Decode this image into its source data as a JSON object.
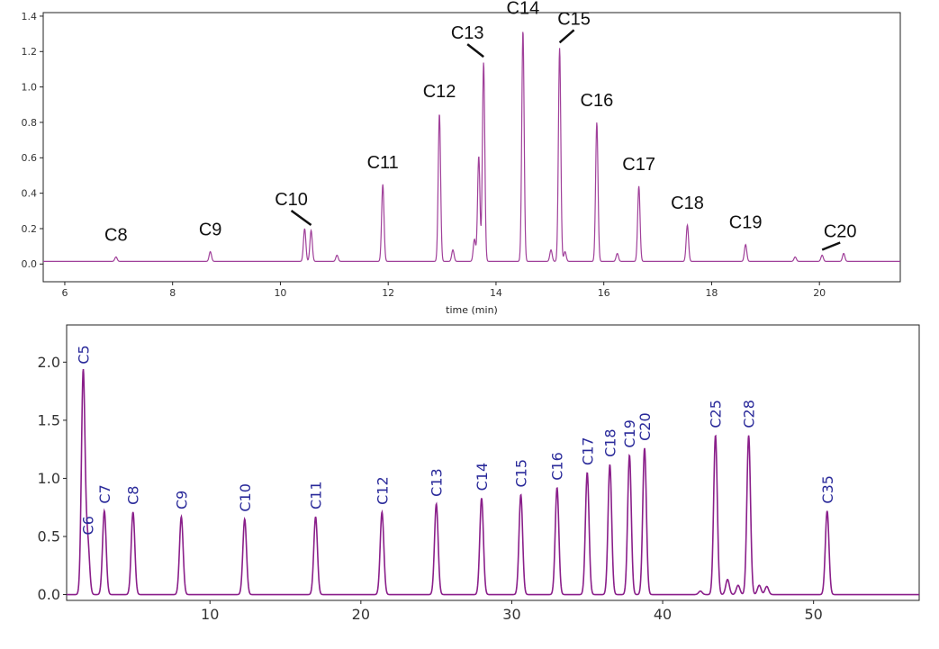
{
  "chart_data": [
    {
      "type": "line",
      "title": "",
      "xlabel": "time (min)",
      "ylabel": "",
      "xlim": [
        5.6,
        21.5
      ],
      "ylim": [
        -0.1,
        1.42
      ],
      "x_ticks": [
        6,
        8,
        10,
        12,
        14,
        16,
        18,
        20
      ],
      "y_ticks": [
        0.0,
        0.2,
        0.4,
        0.6,
        0.8,
        1.0,
        1.2,
        1.4
      ],
      "line_color": "#a0409a",
      "baseline": 0.015,
      "peaks": [
        {
          "x": 6.95,
          "y": 0.04,
          "label": "C8"
        },
        {
          "x": 8.7,
          "y": 0.07,
          "label": "C9"
        },
        {
          "x": 10.45,
          "y": 0.2
        },
        {
          "x": 10.57,
          "y": 0.19,
          "label": "C10"
        },
        {
          "x": 11.05,
          "y": 0.05
        },
        {
          "x": 11.9,
          "y": 0.45,
          "label": "C11"
        },
        {
          "x": 12.95,
          "y": 0.85,
          "label": "C12"
        },
        {
          "x": 13.2,
          "y": 0.08
        },
        {
          "x": 13.6,
          "y": 0.14
        },
        {
          "x": 13.68,
          "y": 0.61
        },
        {
          "x": 13.77,
          "y": 1.14,
          "label": "C13"
        },
        {
          "x": 14.5,
          "y": 1.32,
          "label": "C14"
        },
        {
          "x": 15.02,
          "y": 0.08
        },
        {
          "x": 15.18,
          "y": 1.22,
          "label": "C15"
        },
        {
          "x": 15.28,
          "y": 0.07
        },
        {
          "x": 15.87,
          "y": 0.8,
          "label": "C16"
        },
        {
          "x": 16.25,
          "y": 0.06
        },
        {
          "x": 16.65,
          "y": 0.44,
          "label": "C17"
        },
        {
          "x": 17.55,
          "y": 0.22,
          "label": "C18"
        },
        {
          "x": 18.63,
          "y": 0.11,
          "label": "C19"
        },
        {
          "x": 19.55,
          "y": 0.04
        },
        {
          "x": 20.05,
          "y": 0.05,
          "label": "C20"
        },
        {
          "x": 20.45,
          "y": 0.06
        }
      ]
    },
    {
      "type": "line",
      "title": "",
      "xlabel": "",
      "ylabel": "",
      "xlim": [
        0.5,
        57
      ],
      "ylim": [
        -0.05,
        2.32
      ],
      "x_ticks": [
        10,
        20,
        30,
        40,
        50
      ],
      "y_ticks": [
        0.0,
        0.5,
        1.0,
        1.5,
        2.0
      ],
      "line_color": "#8a1f8a",
      "baseline": 0.0,
      "peaks": [
        {
          "x": 1.6,
          "y": 1.92,
          "label": "C5"
        },
        {
          "x": 1.9,
          "y": 0.45,
          "label": "C6"
        },
        {
          "x": 3.0,
          "y": 0.72,
          "label": "C7"
        },
        {
          "x": 4.9,
          "y": 0.71,
          "label": "C8"
        },
        {
          "x": 8.1,
          "y": 0.67,
          "label": "C9"
        },
        {
          "x": 12.3,
          "y": 0.65,
          "label": "C10"
        },
        {
          "x": 17.0,
          "y": 0.67,
          "label": "C11"
        },
        {
          "x": 21.4,
          "y": 0.71,
          "label": "C12"
        },
        {
          "x": 25.0,
          "y": 0.78,
          "label": "C13"
        },
        {
          "x": 28.0,
          "y": 0.83,
          "label": "C14"
        },
        {
          "x": 30.6,
          "y": 0.86,
          "label": "C15"
        },
        {
          "x": 33.0,
          "y": 0.92,
          "label": "C16"
        },
        {
          "x": 35.0,
          "y": 1.05,
          "label": "C17"
        },
        {
          "x": 36.5,
          "y": 1.12,
          "label": "C18"
        },
        {
          "x": 37.8,
          "y": 1.2,
          "label": "C19"
        },
        {
          "x": 38.8,
          "y": 1.26,
          "label": "C20"
        },
        {
          "x": 42.5,
          "y": 0.03
        },
        {
          "x": 43.5,
          "y": 1.37,
          "label": "C25"
        },
        {
          "x": 44.3,
          "y": 0.13
        },
        {
          "x": 45.0,
          "y": 0.08
        },
        {
          "x": 45.7,
          "y": 1.37,
          "label": "C28"
        },
        {
          "x": 46.4,
          "y": 0.08
        },
        {
          "x": 46.9,
          "y": 0.07
        },
        {
          "x": 50.9,
          "y": 0.72,
          "label": "C35"
        }
      ]
    }
  ]
}
